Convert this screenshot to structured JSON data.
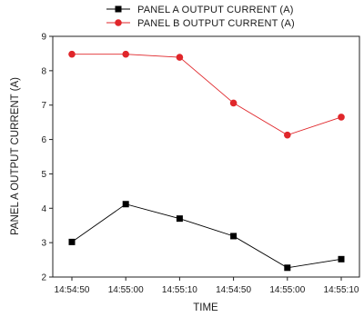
{
  "chart_data": {
    "type": "line",
    "categories": [
      "14:54:50",
      "14:55:00",
      "14:55:10",
      "14:54:50",
      "14:55:00",
      "14:55:10"
    ],
    "series": [
      {
        "name": "PANEL A OUTPUT CURRENT (A)",
        "values": [
          3.02,
          4.12,
          3.7,
          3.19,
          2.27,
          2.52
        ],
        "color": "#000000",
        "marker": "square"
      },
      {
        "name": "PANEL B OUTPUT CURRENT (A)",
        "values": [
          8.48,
          8.48,
          8.39,
          7.06,
          6.13,
          6.65
        ],
        "color": "#e0262a",
        "marker": "circle"
      }
    ],
    "xlabel": "TIME",
    "ylabel": "PANEL A OUTPUT CURRENT (A)",
    "ylim": [
      2,
      9
    ],
    "yticks": [
      2,
      3,
      4,
      5,
      6,
      7,
      8,
      9
    ],
    "grid": false,
    "legend_position": "top"
  }
}
